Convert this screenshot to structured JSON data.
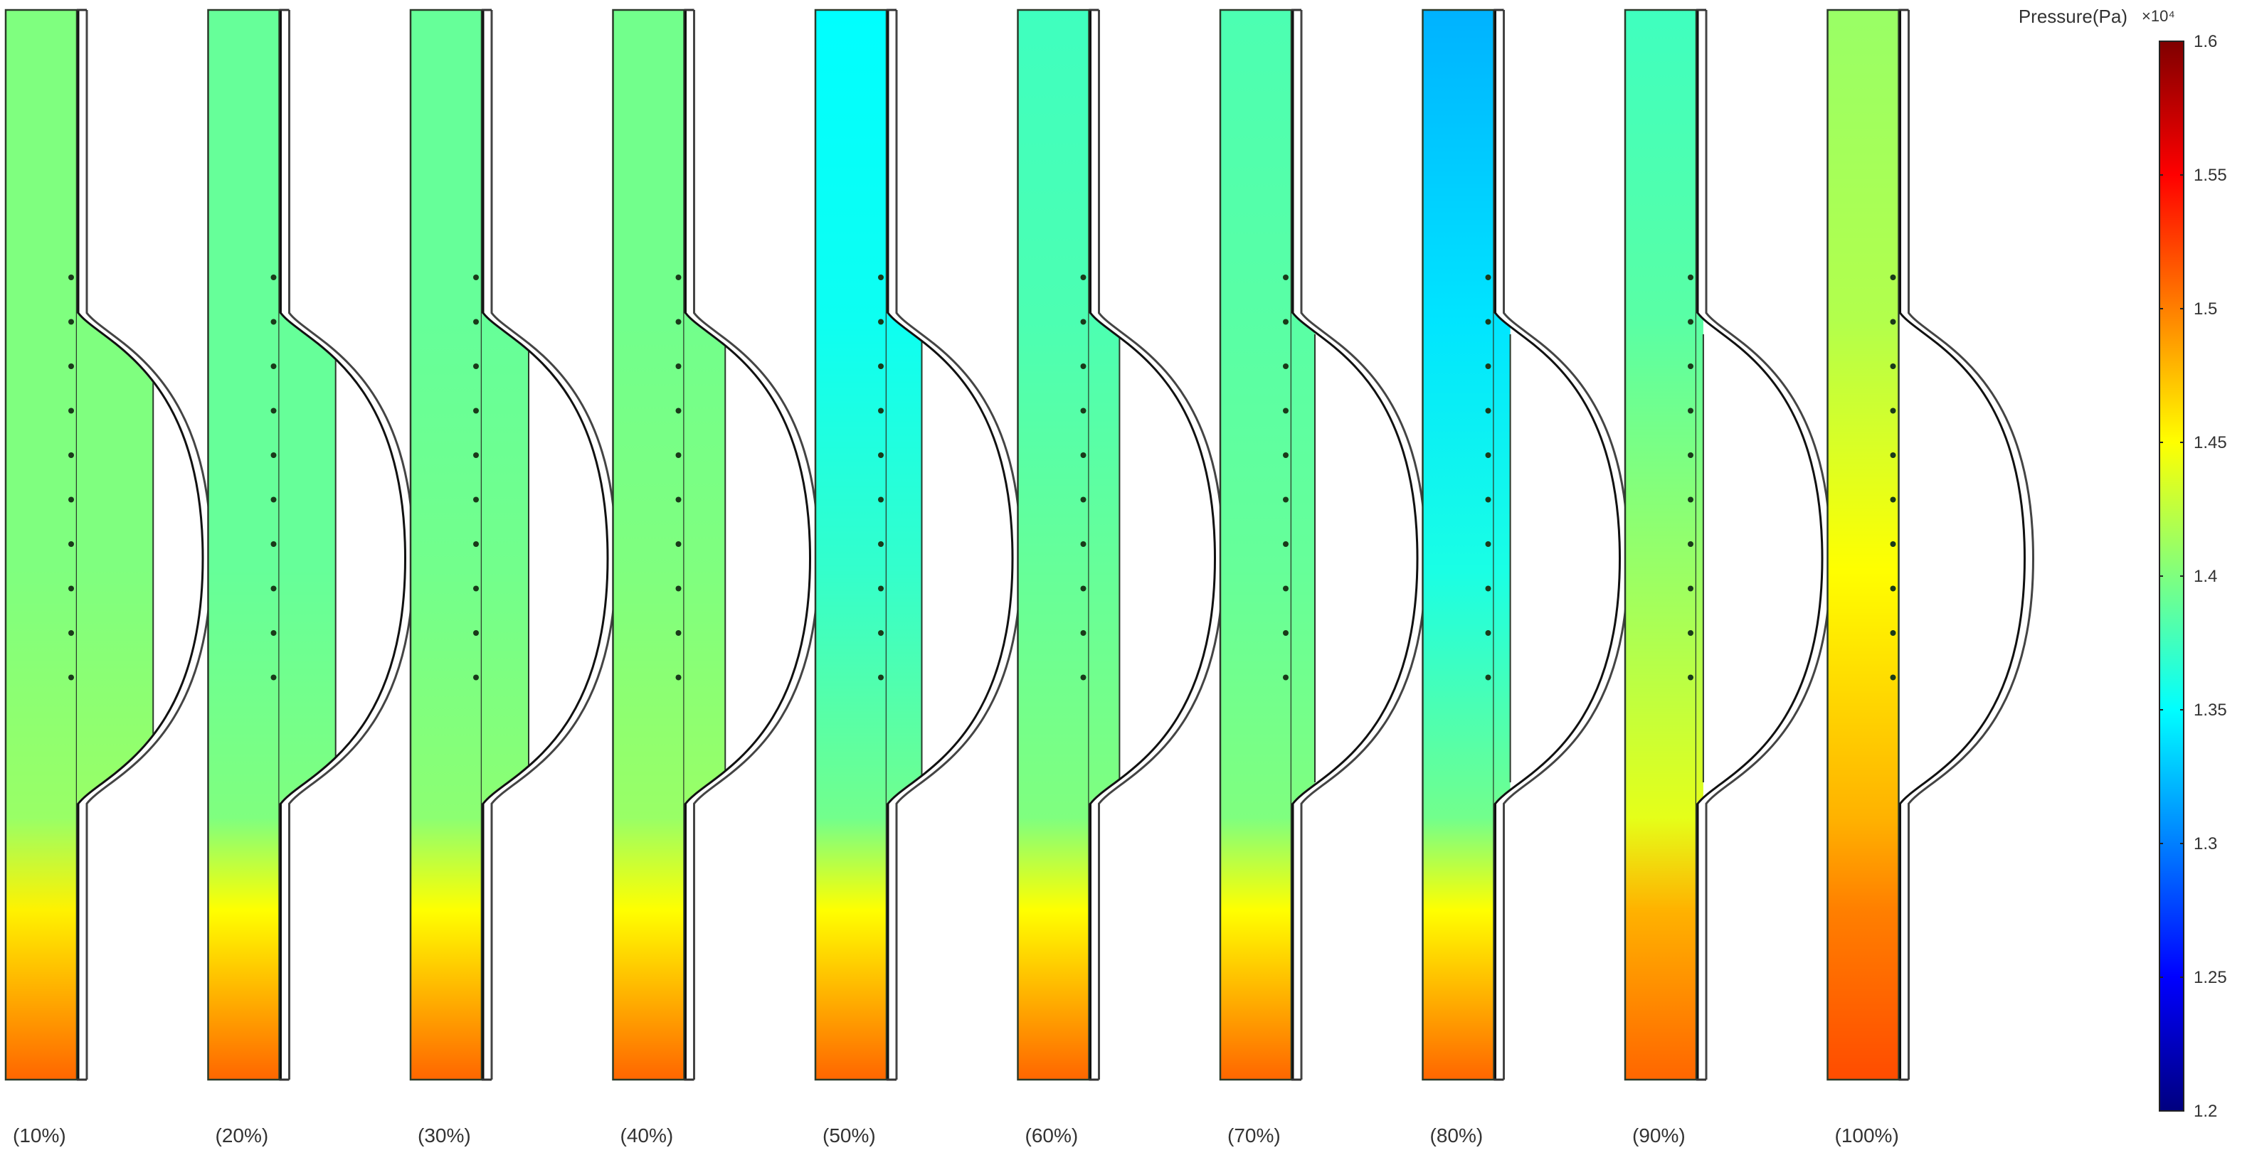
{
  "chart_data": {
    "type": "heatmap",
    "title": "",
    "colorbar": {
      "title": "Pressure(Pa)",
      "multiplier": "×10⁴",
      "range": [
        1.2,
        1.6
      ],
      "ticks": [
        "1.6",
        "1.55",
        "1.5",
        "1.45",
        "1.4",
        "1.35",
        "1.3",
        "1.25",
        "1.2"
      ],
      "tick_values": [
        1.6,
        1.55,
        1.5,
        1.45,
        1.4,
        1.35,
        1.3,
        1.25,
        1.2
      ],
      "colormap": [
        "#00007f",
        "#0000ff",
        "#007fff",
        "#00ffff",
        "#7fff7f",
        "#ffff00",
        "#ff7f00",
        "#ff0000",
        "#7f0000"
      ]
    },
    "panels": [
      {
        "label": "(10%)",
        "pressure_profile": [
          1.4,
          1.4,
          1.4,
          1.41,
          1.455,
          1.51
        ],
        "bulge_fill_fraction": 0.65
      },
      {
        "label": "(20%)",
        "pressure_profile": [
          1.39,
          1.39,
          1.39,
          1.4,
          1.45,
          1.51
        ],
        "bulge_fill_fraction": 0.48
      },
      {
        "label": "(30%)",
        "pressure_profile": [
          1.39,
          1.39,
          1.395,
          1.405,
          1.45,
          1.51
        ],
        "bulge_fill_fraction": 0.4
      },
      {
        "label": "(40%)",
        "pressure_profile": [
          1.395,
          1.395,
          1.4,
          1.41,
          1.45,
          1.51
        ],
        "bulge_fill_fraction": 0.35
      },
      {
        "label": "(50%)",
        "pressure_profile": [
          1.35,
          1.355,
          1.37,
          1.395,
          1.45,
          1.51
        ],
        "bulge_fill_fraction": 0.3
      },
      {
        "label": "(60%)",
        "pressure_profile": [
          1.375,
          1.38,
          1.39,
          1.4,
          1.45,
          1.51
        ],
        "bulge_fill_fraction": 0.26
      },
      {
        "label": "(70%)",
        "pressure_profile": [
          1.38,
          1.385,
          1.39,
          1.4,
          1.45,
          1.51
        ],
        "bulge_fill_fraction": 0.2
      },
      {
        "label": "(80%)",
        "pressure_profile": [
          1.32,
          1.34,
          1.36,
          1.395,
          1.45,
          1.51
        ],
        "bulge_fill_fraction": 0.14
      },
      {
        "label": "(90%)",
        "pressure_profile": [
          1.375,
          1.385,
          1.41,
          1.44,
          1.48,
          1.51
        ],
        "bulge_fill_fraction": 0.06
      },
      {
        "label": "(100%)",
        "pressure_profile": [
          1.41,
          1.42,
          1.45,
          1.48,
          1.5,
          1.52
        ],
        "bulge_fill_fraction": 0.0
      }
    ],
    "probe_points_per_panel": 10
  }
}
